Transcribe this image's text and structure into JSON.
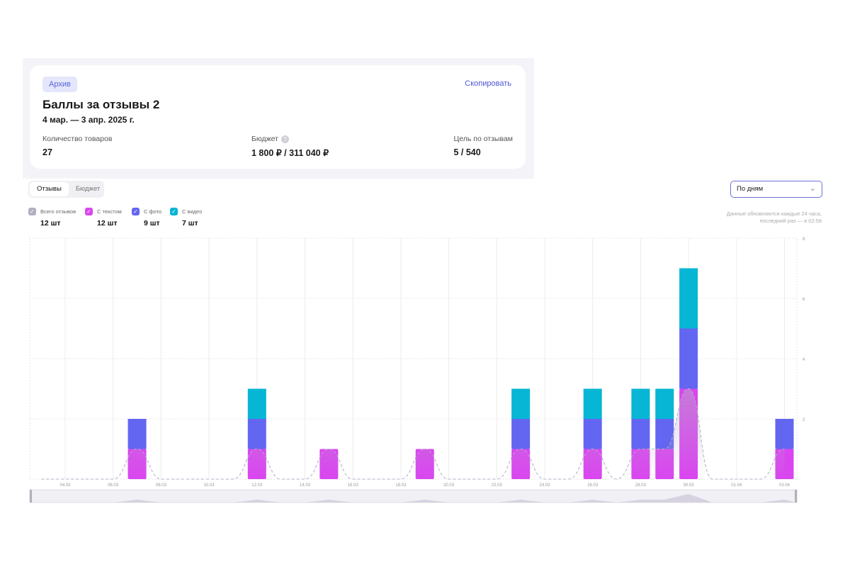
{
  "campaign": {
    "badge": "Архив",
    "copy_label": "Скопировать",
    "title": "Баллы за отзывы 2",
    "period": "4 мар. — 3 апр. 2025 г.",
    "stats": [
      {
        "label": "Количество товаров",
        "value": "27"
      },
      {
        "label": "Бюджет",
        "value": "1 800 ₽ / 311 040 ₽",
        "help": "?"
      },
      {
        "label": "Цель по отзывам",
        "value": "5 / 540"
      }
    ]
  },
  "tabs": [
    {
      "label": "Отзывы",
      "active": true
    },
    {
      "label": "Бюджет",
      "active": false
    }
  ],
  "period_select": {
    "value": "По дням"
  },
  "legend": [
    {
      "label": "Всего отзывов",
      "count": "12 шт",
      "color": "#b4aec4"
    },
    {
      "label": "С текстом",
      "count": "12 шт",
      "color": "#d946ef"
    },
    {
      "label": "С фото",
      "count": "9 шт",
      "color": "#6366f1"
    },
    {
      "label": "С видео",
      "count": "7 шт",
      "color": "#06b6d4"
    }
  ],
  "update_note": {
    "line1": "Данные обновляются каждые 24 часа,",
    "line2": "последний раз — в 02:58"
  },
  "chart_data": {
    "type": "bar",
    "stacked": true,
    "categories": [
      "04.03",
      "05.03",
      "06.03",
      "07.03",
      "08.03",
      "09.03",
      "10.03",
      "11.03",
      "12.03",
      "13.03",
      "14.03",
      "15.03",
      "16.03",
      "17.03",
      "18.03",
      "19.03",
      "20.03",
      "21.03",
      "22.03",
      "23.03",
      "24.03",
      "25.03",
      "26.03",
      "27.03",
      "28.03",
      "29.03",
      "30.03",
      "31.03",
      "01.04",
      "02.04",
      "03.04"
    ],
    "tick_labels": [
      "04.03",
      "06.03",
      "08.03",
      "10.03",
      "12.03",
      "14.03",
      "16.03",
      "18.03",
      "20.03",
      "22.03",
      "24.03",
      "26.03",
      "28.03",
      "30.03",
      "01.04",
      "03.04"
    ],
    "series": [
      {
        "name": "С текстом",
        "color": "#d946ef",
        "values": [
          0,
          0,
          0,
          1,
          0,
          0,
          0,
          0,
          1,
          0,
          0,
          1,
          0,
          0,
          0,
          1,
          0,
          0,
          0,
          1,
          0,
          0,
          1,
          0,
          1,
          1,
          3,
          0,
          0,
          0,
          1
        ]
      },
      {
        "name": "С фото",
        "color": "#6366f1",
        "values": [
          0,
          0,
          0,
          1,
          0,
          0,
          0,
          0,
          1,
          0,
          0,
          0,
          0,
          0,
          0,
          0,
          0,
          0,
          0,
          1,
          0,
          0,
          1,
          0,
          1,
          1,
          2,
          0,
          0,
          0,
          1
        ]
      },
      {
        "name": "С видео",
        "color": "#06b6d4",
        "values": [
          0,
          0,
          0,
          0,
          0,
          0,
          0,
          0,
          1,
          0,
          0,
          0,
          0,
          0,
          0,
          0,
          0,
          0,
          0,
          1,
          0,
          0,
          1,
          0,
          1,
          1,
          2,
          0,
          0,
          0,
          0
        ]
      }
    ],
    "line_series": {
      "name": "Всего отзывов",
      "color": "#b4aec4",
      "values": [
        0,
        0,
        0,
        1,
        0,
        0,
        0,
        0,
        1,
        0,
        0,
        1,
        0,
        0,
        0,
        1,
        0,
        0,
        0,
        1,
        0,
        0,
        1,
        0,
        1,
        1,
        3,
        0,
        0,
        0,
        1
      ]
    },
    "y_ticks": [
      2,
      4,
      6,
      8
    ],
    "ylim": [
      0,
      8
    ],
    "grid": true
  }
}
